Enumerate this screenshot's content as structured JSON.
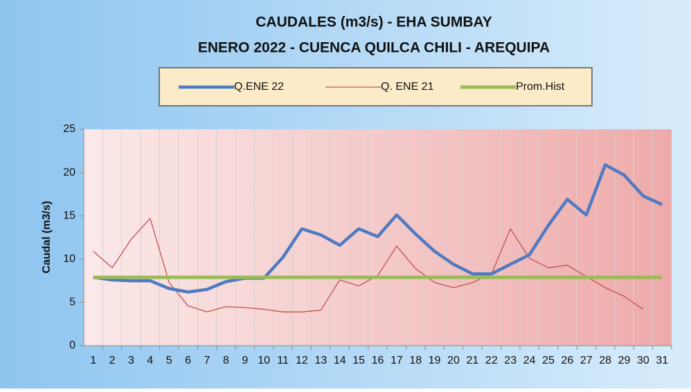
{
  "chart_data": {
    "type": "line",
    "title": "CAUDALES (m3/s) - EHA SUMBAY",
    "subtitle": "ENERO 2022 -  CUENCA QUILCA CHILI - AREQUIPA",
    "y_label": "Caudal  (m3/s)",
    "categories": [
      "1",
      "2",
      "3",
      "4",
      "5",
      "6",
      "7",
      "8",
      "9",
      "10",
      "11",
      "12",
      "13",
      "14",
      "15",
      "16",
      "17",
      "18",
      "19",
      "20",
      "21",
      "22",
      "23",
      "24",
      "25",
      "26",
      "27",
      "28",
      "29",
      "30",
      "31"
    ],
    "series": [
      {
        "name": "Q.ENE 22",
        "color": "#4f7ac2",
        "width": 4.5,
        "values": [
          7.9,
          7.6,
          7.5,
          7.5,
          6.6,
          6.2,
          6.5,
          7.4,
          7.8,
          7.8,
          10.2,
          13.5,
          12.8,
          11.6,
          13.5,
          12.6,
          15.1,
          12.9,
          10.9,
          9.4,
          8.3,
          8.3,
          9.4,
          10.5,
          13.9,
          16.9,
          15.1,
          20.9,
          19.7,
          17.3,
          16.3
        ]
      },
      {
        "name": "Q. ENE 21",
        "color": "#c0504d",
        "width": 1.3,
        "values": [
          10.9,
          9.0,
          12.3,
          14.7,
          7.3,
          4.6,
          3.9,
          4.5,
          4.4,
          4.2,
          3.9,
          3.9,
          4.1,
          7.6,
          6.9,
          8.1,
          11.5,
          8.9,
          7.3,
          6.7,
          7.3,
          8.3,
          13.5,
          10.1,
          9.0,
          9.3,
          8.0,
          6.7,
          5.7,
          4.2,
          null
        ]
      },
      {
        "name": "Prom.Hist",
        "color": "#9bbb59",
        "width": 5,
        "values": [
          7.9,
          7.9,
          7.9,
          7.9,
          7.9,
          7.9,
          7.9,
          7.9,
          7.9,
          7.9,
          7.9,
          7.9,
          7.9,
          7.9,
          7.9,
          7.9,
          7.9,
          7.9,
          7.9,
          7.9,
          7.9,
          7.9,
          7.9,
          7.9,
          7.9,
          7.9,
          7.9,
          7.9,
          7.9,
          7.9,
          7.9
        ]
      }
    ],
    "ylim": [
      0,
      25
    ],
    "yticks": [
      0,
      5,
      10,
      15,
      20,
      25
    ],
    "grid": "x",
    "legend": "top"
  }
}
